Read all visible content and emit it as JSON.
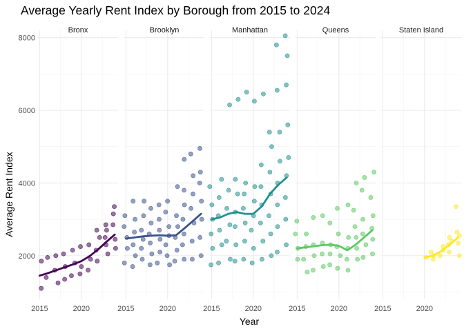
{
  "chart_data": {
    "type": "scatter",
    "title": "Average Yearly Rent Index by Borough from 2015 to 2024",
    "xlabel": "Year",
    "ylabel": "Average Rent Index",
    "xlim": [
      2014.8,
      2024.4
    ],
    "ylim": [
      800,
      8200
    ],
    "x_ticks": [
      2015,
      2020
    ],
    "y_ticks": [
      2000,
      4000,
      6000,
      8000
    ],
    "grid": true,
    "legend": "none",
    "panels": [
      {
        "name": "Bronx",
        "color": "#440154",
        "x_min": 2015,
        "points": [
          [
            2015,
            1100
          ],
          [
            2015,
            1850
          ],
          [
            2016,
            1400
          ],
          [
            2016,
            1950
          ],
          [
            2017,
            1250
          ],
          [
            2017,
            1600
          ],
          [
            2017,
            2000
          ],
          [
            2018,
            1350
          ],
          [
            2018,
            1700
          ],
          [
            2018,
            2050
          ],
          [
            2019,
            1450
          ],
          [
            2019,
            1800
          ],
          [
            2019,
            2150
          ],
          [
            2020,
            1500
          ],
          [
            2020,
            1700
          ],
          [
            2020,
            2250
          ],
          [
            2021,
            1600
          ],
          [
            2021,
            1900
          ],
          [
            2021,
            2300
          ],
          [
            2022,
            1850
          ],
          [
            2022,
            2150
          ],
          [
            2022,
            2500
          ],
          [
            2022,
            2700
          ],
          [
            2023,
            2050
          ],
          [
            2023,
            2300
          ],
          [
            2023,
            2500
          ],
          [
            2023,
            2700
          ],
          [
            2023,
            2850
          ],
          [
            2024,
            2200
          ],
          [
            2024,
            2450
          ],
          [
            2024,
            2850
          ],
          [
            2024,
            3150
          ],
          [
            2024,
            3350
          ]
        ],
        "trend": [
          [
            2015,
            1450
          ],
          [
            2016,
            1520
          ],
          [
            2017,
            1600
          ],
          [
            2018,
            1680
          ],
          [
            2019,
            1760
          ],
          [
            2020,
            1850
          ],
          [
            2021,
            1990
          ],
          [
            2022,
            2170
          ],
          [
            2023,
            2380
          ],
          [
            2024,
            2580
          ]
        ]
      },
      {
        "name": "Brooklyn",
        "color": "#3b528b",
        "x_min": 2015,
        "points": [
          [
            2015,
            1800
          ],
          [
            2015,
            2200
          ],
          [
            2015,
            2500
          ],
          [
            2015,
            2800
          ],
          [
            2015,
            3100
          ],
          [
            2016,
            1700
          ],
          [
            2016,
            2000
          ],
          [
            2016,
            2300
          ],
          [
            2016,
            2650
          ],
          [
            2016,
            3000
          ],
          [
            2016,
            3500
          ],
          [
            2017,
            1900
          ],
          [
            2017,
            2200
          ],
          [
            2017,
            2450
          ],
          [
            2017,
            2700
          ],
          [
            2017,
            3100
          ],
          [
            2017,
            3500
          ],
          [
            2018,
            1750
          ],
          [
            2018,
            2050
          ],
          [
            2018,
            2350
          ],
          [
            2018,
            2600
          ],
          [
            2018,
            2900
          ],
          [
            2018,
            3300
          ],
          [
            2019,
            1800
          ],
          [
            2019,
            2100
          ],
          [
            2019,
            2450
          ],
          [
            2019,
            2700
          ],
          [
            2019,
            3000
          ],
          [
            2019,
            3400
          ],
          [
            2020,
            1750
          ],
          [
            2020,
            2000
          ],
          [
            2020,
            2300
          ],
          [
            2020,
            2550
          ],
          [
            2020,
            2800
          ],
          [
            2020,
            3200
          ],
          [
            2020,
            3500
          ],
          [
            2021,
            1850
          ],
          [
            2021,
            2150
          ],
          [
            2021,
            2500
          ],
          [
            2021,
            2800
          ],
          [
            2021,
            3100
          ],
          [
            2021,
            3900
          ],
          [
            2022,
            1900
          ],
          [
            2022,
            2300
          ],
          [
            2022,
            2600
          ],
          [
            2022,
            3000
          ],
          [
            2022,
            3400
          ],
          [
            2022,
            3800
          ],
          [
            2022,
            4650
          ],
          [
            2023,
            1900
          ],
          [
            2023,
            2400
          ],
          [
            2023,
            2900
          ],
          [
            2023,
            3300
          ],
          [
            2023,
            3700
          ],
          [
            2023,
            4200
          ],
          [
            2023,
            4800
          ],
          [
            2024,
            2000
          ],
          [
            2024,
            2500
          ],
          [
            2024,
            3000
          ],
          [
            2024,
            3500
          ],
          [
            2024,
            4000
          ],
          [
            2024,
            4300
          ],
          [
            2024,
            4950
          ]
        ],
        "trend": [
          [
            2015,
            2470
          ],
          [
            2016,
            2500
          ],
          [
            2017,
            2530
          ],
          [
            2018,
            2550
          ],
          [
            2019,
            2560
          ],
          [
            2020,
            2550
          ],
          [
            2021,
            2560
          ],
          [
            2022,
            2750
          ],
          [
            2023,
            2950
          ],
          [
            2024,
            3150
          ]
        ]
      },
      {
        "name": "Manhattan",
        "color": "#21908d",
        "x_min": 2015,
        "points": [
          [
            2015,
            1750
          ],
          [
            2015,
            2200
          ],
          [
            2015,
            2600
          ],
          [
            2015,
            3000
          ],
          [
            2015,
            3400
          ],
          [
            2015,
            3900
          ],
          [
            2016,
            1800
          ],
          [
            2016,
            2300
          ],
          [
            2016,
            2700
          ],
          [
            2016,
            3100
          ],
          [
            2016,
            3600
          ],
          [
            2016,
            4100
          ],
          [
            2017,
            1900
          ],
          [
            2017,
            2400
          ],
          [
            2017,
            2850
          ],
          [
            2017,
            3300
          ],
          [
            2017,
            3800
          ],
          [
            2017,
            6150
          ],
          [
            2018,
            1850
          ],
          [
            2018,
            2300
          ],
          [
            2018,
            2800
          ],
          [
            2018,
            3200
          ],
          [
            2018,
            3700
          ],
          [
            2018,
            4100
          ],
          [
            2018,
            6300
          ],
          [
            2019,
            1900
          ],
          [
            2019,
            2400
          ],
          [
            2019,
            2900
          ],
          [
            2019,
            3300
          ],
          [
            2019,
            3700
          ],
          [
            2019,
            4000
          ],
          [
            2019,
            6500
          ],
          [
            2020,
            1800
          ],
          [
            2020,
            2200
          ],
          [
            2020,
            2700
          ],
          [
            2020,
            3100
          ],
          [
            2020,
            3500
          ],
          [
            2020,
            3900
          ],
          [
            2020,
            6250
          ],
          [
            2021,
            1900
          ],
          [
            2021,
            2400
          ],
          [
            2021,
            2900
          ],
          [
            2021,
            3400
          ],
          [
            2021,
            3900
          ],
          [
            2021,
            4500
          ],
          [
            2021,
            6450
          ],
          [
            2022,
            2000
          ],
          [
            2022,
            2600
          ],
          [
            2022,
            3100
          ],
          [
            2022,
            3700
          ],
          [
            2022,
            4300
          ],
          [
            2022,
            5000
          ],
          [
            2022,
            5400
          ],
          [
            2023,
            2100
          ],
          [
            2023,
            2800
          ],
          [
            2023,
            3400
          ],
          [
            2023,
            4000
          ],
          [
            2023,
            4600
          ],
          [
            2023,
            5400
          ],
          [
            2023,
            6550
          ],
          [
            2023,
            7800
          ],
          [
            2024,
            2300
          ],
          [
            2024,
            3000
          ],
          [
            2024,
            3600
          ],
          [
            2024,
            4200
          ],
          [
            2024,
            4700
          ],
          [
            2024,
            5600
          ],
          [
            2024,
            6700
          ],
          [
            2024,
            7500
          ],
          [
            2024,
            8050
          ]
        ],
        "trend": [
          [
            2015,
            3000
          ],
          [
            2016,
            3050
          ],
          [
            2017,
            3150
          ],
          [
            2018,
            3200
          ],
          [
            2019,
            3150
          ],
          [
            2020,
            3150
          ],
          [
            2021,
            3350
          ],
          [
            2022,
            3700
          ],
          [
            2023,
            3950
          ],
          [
            2024,
            4150
          ]
        ]
      },
      {
        "name": "Queens",
        "color": "#5dc863",
        "x_min": 2015,
        "points": [
          [
            2015,
            1900
          ],
          [
            2015,
            2200
          ],
          [
            2015,
            2600
          ],
          [
            2015,
            2950
          ],
          [
            2016,
            1550
          ],
          [
            2016,
            1900
          ],
          [
            2016,
            2250
          ],
          [
            2016,
            2600
          ],
          [
            2017,
            1600
          ],
          [
            2017,
            2000
          ],
          [
            2017,
            2300
          ],
          [
            2017,
            3050
          ],
          [
            2018,
            1700
          ],
          [
            2018,
            2050
          ],
          [
            2018,
            2350
          ],
          [
            2018,
            3100
          ],
          [
            2019,
            1750
          ],
          [
            2019,
            2050
          ],
          [
            2019,
            2300
          ],
          [
            2019,
            2900
          ],
          [
            2020,
            1650
          ],
          [
            2020,
            2000
          ],
          [
            2020,
            2250
          ],
          [
            2020,
            2600
          ],
          [
            2020,
            3300
          ],
          [
            2021,
            1600
          ],
          [
            2021,
            1900
          ],
          [
            2021,
            2200
          ],
          [
            2021,
            2500
          ],
          [
            2021,
            3400
          ],
          [
            2022,
            1900
          ],
          [
            2022,
            2200
          ],
          [
            2022,
            2500
          ],
          [
            2022,
            2800
          ],
          [
            2022,
            3250
          ],
          [
            2022,
            4000
          ],
          [
            2023,
            1950
          ],
          [
            2023,
            2300
          ],
          [
            2023,
            2600
          ],
          [
            2023,
            3000
          ],
          [
            2023,
            3800
          ],
          [
            2023,
            4150
          ],
          [
            2024,
            2050
          ],
          [
            2024,
            2450
          ],
          [
            2024,
            2750
          ],
          [
            2024,
            3100
          ],
          [
            2024,
            3600
          ],
          [
            2024,
            4300
          ]
        ],
        "trend": [
          [
            2015,
            2200
          ],
          [
            2016,
            2230
          ],
          [
            2017,
            2260
          ],
          [
            2018,
            2290
          ],
          [
            2019,
            2300
          ],
          [
            2020,
            2270
          ],
          [
            2021,
            2150
          ],
          [
            2022,
            2300
          ],
          [
            2023,
            2500
          ],
          [
            2024,
            2700
          ]
        ]
      },
      {
        "name": "Staten Island",
        "color": "#fde725",
        "x_min": 2020,
        "points": [
          [
            2020,
            1950
          ],
          [
            2021,
            1900
          ],
          [
            2021,
            2000
          ],
          [
            2021,
            2100
          ],
          [
            2022,
            2000
          ],
          [
            2022,
            2150
          ],
          [
            2022,
            2250
          ],
          [
            2023,
            2100
          ],
          [
            2023,
            2300
          ],
          [
            2023,
            2400
          ],
          [
            2023,
            2500
          ],
          [
            2024,
            2000
          ],
          [
            2024,
            2350
          ],
          [
            2024,
            2550
          ],
          [
            2024,
            2650
          ],
          [
            2024,
            3350
          ]
        ],
        "trend": [
          [
            2020,
            1950
          ],
          [
            2021,
            2000
          ],
          [
            2022,
            2120
          ],
          [
            2023,
            2300
          ],
          [
            2024,
            2500
          ]
        ]
      }
    ]
  }
}
